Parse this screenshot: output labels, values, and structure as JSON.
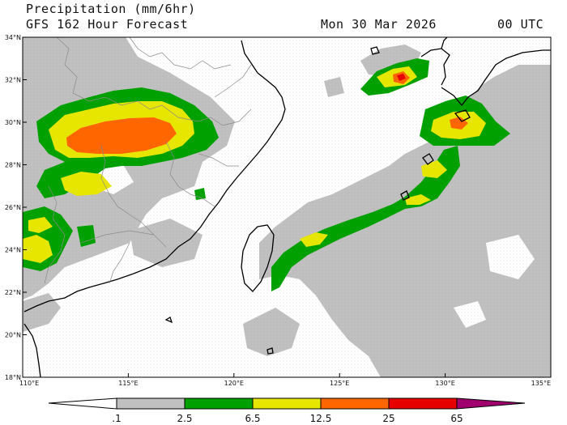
{
  "header": {
    "title": "Precipitation (mm/6hr)",
    "subtitle": "GFS 162 Hour Forecast",
    "valid_date": "Mon 30 Mar 2026",
    "valid_time": "00 UTC"
  },
  "map": {
    "lon_range": [
      110,
      135
    ],
    "lat_range": [
      18,
      34
    ],
    "lon_ticks": [
      "110°E",
      "115°E",
      "120°E",
      "125°E",
      "130°E",
      "135°E"
    ],
    "lat_ticks": [
      "18°N",
      "20°N",
      "22°N",
      "24°N",
      "26°N",
      "28°N",
      "30°N",
      "32°N",
      "34°N"
    ]
  },
  "legend": {
    "labels": [
      ".1",
      "2.5",
      "6.5",
      "12.5",
      "25",
      "65"
    ],
    "colors": {
      "trace": "#ffffff",
      "light": "#c0c0c0",
      "moderate": "#00a000",
      "heavy": "#e6e600",
      "very_heavy": "#ff6600",
      "intense": "#e60000",
      "extreme": "#a0006e"
    }
  }
}
